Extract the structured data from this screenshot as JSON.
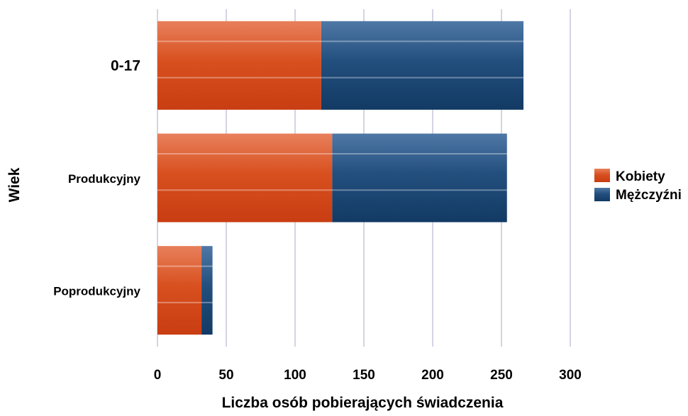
{
  "chart_data": {
    "type": "bar",
    "orientation": "horizontal",
    "stacked": true,
    "categories": [
      "0-17",
      "Produkcyjny",
      "Poprodukcyjny"
    ],
    "series": [
      {
        "name": "Kobiety",
        "values": [
          119,
          127,
          32
        ],
        "color": "#d84a20"
      },
      {
        "name": "Mężczyźni",
        "values": [
          147,
          127,
          8
        ],
        "color": "#1f4a78"
      }
    ],
    "xlabel": "Liczba osób pobierających świadczenia",
    "ylabel": "Wiek",
    "xlim": [
      0,
      300
    ],
    "xticks": [
      0,
      50,
      100,
      150,
      200,
      250,
      300
    ],
    "grid": "vertical",
    "legend_position": "right"
  }
}
